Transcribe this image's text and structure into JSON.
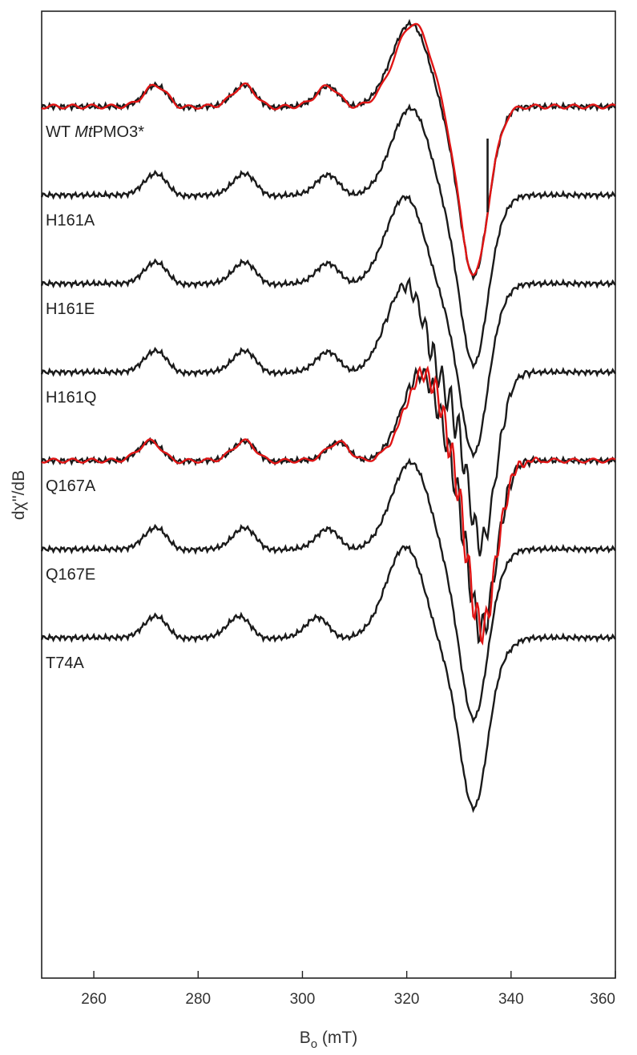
{
  "chart_data": {
    "type": "line",
    "xlabel_main": "B",
    "xlabel_sub": "o",
    "xlabel_unit": " (mT)",
    "ylabel": "dχ''/dB",
    "xlim": [
      250,
      360
    ],
    "xticks": [
      260,
      280,
      300,
      320,
      340,
      360
    ],
    "xtick_labels": [
      "260",
      "280",
      "300",
      "320",
      "340",
      "360"
    ],
    "grid": false,
    "legend": "none",
    "colors": {
      "experimental": "#1a1a1a",
      "simulated": "#e01515",
      "axis": "#222222"
    },
    "series": [
      {
        "label_prefix": "WT ",
        "label_italic": "Mt",
        "label_suffix": "PMO3*",
        "baseline": 0.9,
        "features": {
          "hf_peaks": [
            272,
            289,
            305
          ],
          "hf_amp": 0.55,
          "g_max": 321,
          "g_max_amp": 2.2,
          "g_min": 333,
          "g_min_amp": -3.6,
          "return": 339
        },
        "artifact_x": 335.5,
        "simulated_overlay": true
      },
      {
        "label_prefix": "H161A",
        "label_italic": "",
        "label_suffix": "",
        "baseline": 2.0,
        "features": {
          "hf_peaks": [
            272,
            289,
            305
          ],
          "hf_amp": 0.55,
          "g_max": 321,
          "g_max_amp": 2.3,
          "g_min": 333,
          "g_min_amp": -3.6,
          "return": 340
        }
      },
      {
        "label_prefix": "H161E",
        "label_italic": "",
        "label_suffix": "",
        "baseline": 3.1,
        "features": {
          "hf_peaks": [
            272,
            289,
            305
          ],
          "hf_amp": 0.55,
          "g_max": 320,
          "g_max_amp": 2.3,
          "g_min": 333,
          "g_min_amp": -3.6,
          "return": 340
        }
      },
      {
        "label_prefix": "H161Q",
        "label_italic": "",
        "label_suffix": "",
        "baseline": 4.2,
        "features": {
          "hf_peaks": [
            272,
            289,
            305
          ],
          "hf_amp": 0.55,
          "g_max": 320,
          "g_max_amp": 2.3,
          "g_min": 334.5,
          "g_min_amp": -3.6,
          "return": 340,
          "superhyperfine": true
        }
      },
      {
        "label_prefix": "Q167A",
        "label_italic": "",
        "label_suffix": "",
        "baseline": 5.3,
        "features": {
          "hf_peaks": [
            271,
            289,
            307
          ],
          "hf_amp": 0.5,
          "g_max": 323,
          "g_max_amp": 2.3,
          "g_min": 334.5,
          "g_min_amp": -3.6,
          "return": 340,
          "superhyperfine": true
        },
        "simulated_overlay": true
      },
      {
        "label_prefix": "Q167E",
        "label_italic": "",
        "label_suffix": "",
        "baseline": 6.4,
        "features": {
          "hf_peaks": [
            272,
            289,
            305
          ],
          "hf_amp": 0.55,
          "g_max": 321,
          "g_max_amp": 2.3,
          "g_min": 333,
          "g_min_amp": -3.6,
          "return": 340
        }
      },
      {
        "label_prefix": "T74A",
        "label_italic": "",
        "label_suffix": "",
        "baseline": 7.5,
        "features": {
          "hf_peaks": [
            272,
            288,
            303
          ],
          "hf_amp": 0.55,
          "g_max": 320,
          "g_max_amp": 2.4,
          "g_min": 333,
          "g_min_amp": -3.6,
          "return": 341
        }
      }
    ]
  }
}
